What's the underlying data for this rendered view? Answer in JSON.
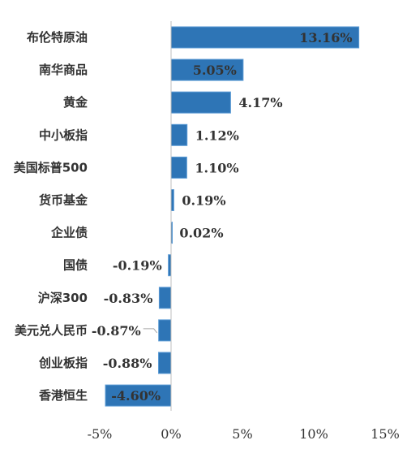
{
  "chart_data": {
    "type": "bar",
    "orientation": "horizontal",
    "title": "",
    "xlabel": "",
    "ylabel": "",
    "categories": [
      "布伦特原油",
      "南华商品",
      "黄金",
      "中小板指",
      "美国标普500",
      "货币基金",
      "企业债",
      "国债",
      "沪深300",
      "美元兑人民币",
      "创业板指",
      "香港恒生"
    ],
    "values": [
      13.16,
      5.05,
      4.17,
      1.12,
      1.1,
      0.19,
      0.02,
      -0.19,
      -0.83,
      -0.87,
      -0.88,
      -4.6
    ],
    "value_labels": [
      "13.16%",
      "5.05%",
      "4.17%",
      "1.12%",
      "1.10%",
      "0.19%",
      "0.02%",
      "-0.19%",
      "-0.83%",
      "-0.87%",
      "-0.88%",
      "-4.60%"
    ],
    "xlim": [
      -5,
      15
    ],
    "ticks": [
      -5,
      0,
      5,
      10,
      15
    ],
    "tick_labels": [
      "-5%",
      "0%",
      "5%",
      "10%",
      "15%"
    ],
    "grid": false,
    "legend": "none",
    "bar_color": "#2E75B6",
    "bar_edge_color": "#5B9BD5",
    "axis_color": "#BFBFBF"
  }
}
